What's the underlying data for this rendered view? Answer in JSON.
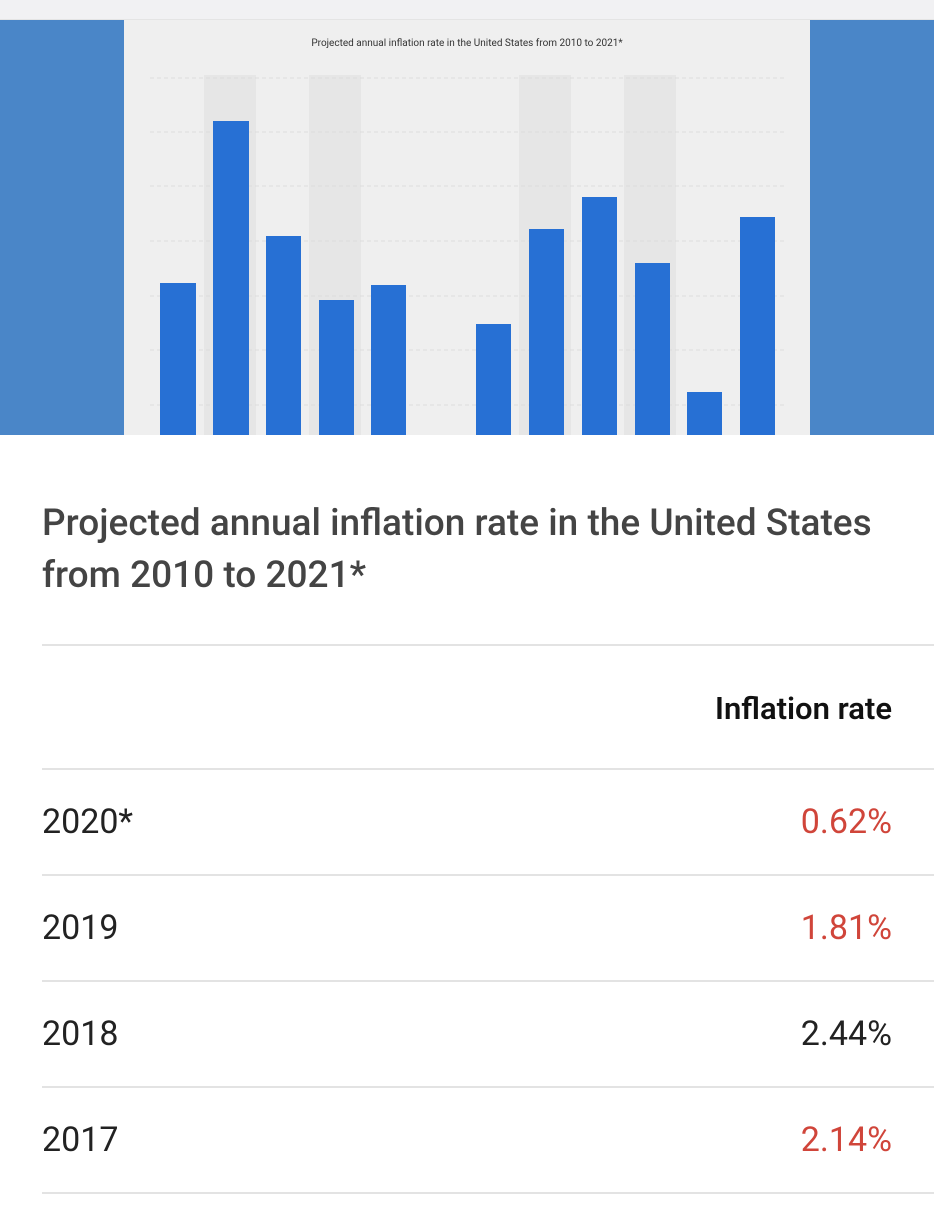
{
  "thumbnail": {
    "title": "Projected annual inflation rate in the United States from 2010 to 2021*"
  },
  "heading": "Projected annual inflation rate in the United States from 2010 to 2021*",
  "table": {
    "header": "Inflation rate",
    "rows": [
      {
        "label": "2020*",
        "value": "0.62%",
        "color": "#d0453a"
      },
      {
        "label": "2019",
        "value": "1.81%",
        "color": "#d0453a"
      },
      {
        "label": "2018",
        "value": "2.44%",
        "color": "#222222"
      },
      {
        "label": "2017",
        "value": "2.14%",
        "color": "#d0453a"
      }
    ]
  }
}
